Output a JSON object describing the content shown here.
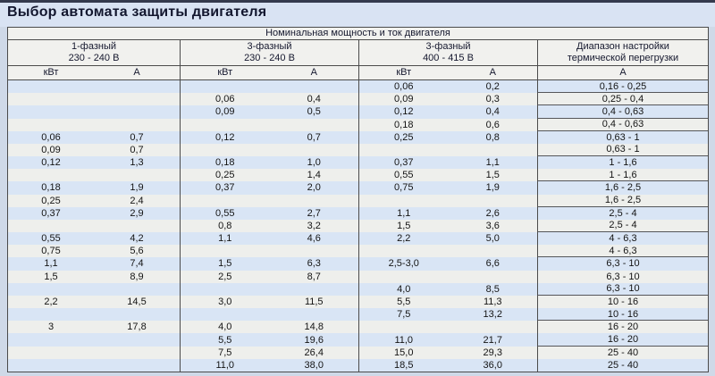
{
  "page": {
    "title": "Выбор автомата защиты двигателя"
  },
  "colors": {
    "page_background": "#cfd9e8",
    "title_area_background": "#d9e3f3",
    "top_strip": "#343a4d",
    "header_background": "#f1f1ee",
    "stripe_blue": "#d9e5f5",
    "stripe_plain": "#eeefec",
    "border": "#4b4b4b",
    "title_text": "#12162e"
  },
  "table": {
    "header": {
      "span_title": "Номинальная мощность и ток двигателя",
      "groups": [
        {
          "line1": "1-фазный",
          "line2": "230 - 240 В"
        },
        {
          "line1": "3-фазный",
          "line2": "230 - 240 В"
        },
        {
          "line1": "3-фазный",
          "line2": "400 - 415 В"
        },
        {
          "line1": "Диапазон настройки",
          "line2": "термической перегрузки"
        }
      ],
      "units": [
        "кВт",
        "А",
        "кВт",
        "А",
        "кВт",
        "А",
        "А"
      ]
    },
    "columns_legend": [
      "1ph_230-240V_kW",
      "1ph_230-240V_A",
      "3ph_230-240V_kW",
      "3ph_230-240V_A",
      "3ph_400-415V_kW",
      "3ph_400-415V_A",
      "thermal_overload_range_A"
    ],
    "rows": [
      [
        "",
        "",
        "",
        "",
        "0,06",
        "0,2",
        "0,16 - 0,25"
      ],
      [
        "",
        "",
        "0,06",
        "0,4",
        "0,09",
        "0,3",
        "0,25 - 0,4"
      ],
      [
        "",
        "",
        "0,09",
        "0,5",
        "0,12",
        "0,4",
        "0,4 - 0,63"
      ],
      [
        "",
        "",
        "",
        "",
        "0,18",
        "0,6",
        "0,4 - 0,63"
      ],
      [
        "0,06",
        "0,7",
        "0,12",
        "0,7",
        "0,25",
        "0,8",
        "0,63 - 1"
      ],
      [
        "0,09",
        "0,7",
        "",
        "",
        "",
        "",
        "0,63 - 1"
      ],
      [
        "0,12",
        "1,3",
        "0,18",
        "1,0",
        "0,37",
        "1,1",
        "1 - 1,6"
      ],
      [
        "",
        "",
        "0,25",
        "1,4",
        "0,55",
        "1,5",
        "1 - 1,6"
      ],
      [
        "0,18",
        "1,9",
        "0,37",
        "2,0",
        "0,75",
        "1,9",
        "1,6 - 2,5"
      ],
      [
        "0,25",
        "2,4",
        "",
        "",
        "",
        "",
        "1,6 - 2,5"
      ],
      [
        "0,37",
        "2,9",
        "0,55",
        "2,7",
        "1,1",
        "2,6",
        "2,5 - 4"
      ],
      [
        "",
        "",
        "0,8",
        "3,2",
        "1,5",
        "3,6",
        "2,5 - 4"
      ],
      [
        "0,55",
        "4,2",
        "1,1",
        "4,6",
        "2,2",
        "5,0",
        "4 - 6,3"
      ],
      [
        "0,75",
        "5,6",
        "",
        "",
        "",
        "",
        "4 - 6,3"
      ],
      [
        "1,1",
        "7,4",
        "1,5",
        "6,3",
        "2,5-3,0",
        "6,6",
        "6,3 - 10"
      ],
      [
        "1,5",
        "8,9",
        "2,5",
        "8,7",
        "",
        "",
        "6,3 - 10"
      ],
      [
        "",
        "",
        "",
        "",
        "4,0",
        "8,5",
        "6,3 - 10"
      ],
      [
        "2,2",
        "14,5",
        "3,0",
        "11,5",
        "5,5",
        "11,3",
        "10 - 16"
      ],
      [
        "",
        "",
        "",
        "",
        "7,5",
        "13,2",
        "10 - 16"
      ],
      [
        "3",
        "17,8",
        "4,0",
        "14,8",
        "",
        "",
        "16 - 20"
      ],
      [
        "",
        "",
        "5,5",
        "19,6",
        "11,0",
        "21,7",
        "16 - 20"
      ],
      [
        "",
        "",
        "7,5",
        "26,4",
        "15,0",
        "29,3",
        "25 - 40"
      ],
      [
        "",
        "",
        "11,0",
        "38,0",
        "18,5",
        "36,0",
        "25 - 40"
      ]
    ],
    "g4_border_after_rows": [
      1,
      2,
      3,
      4,
      6,
      8,
      10,
      12,
      14,
      17,
      19,
      21
    ]
  }
}
